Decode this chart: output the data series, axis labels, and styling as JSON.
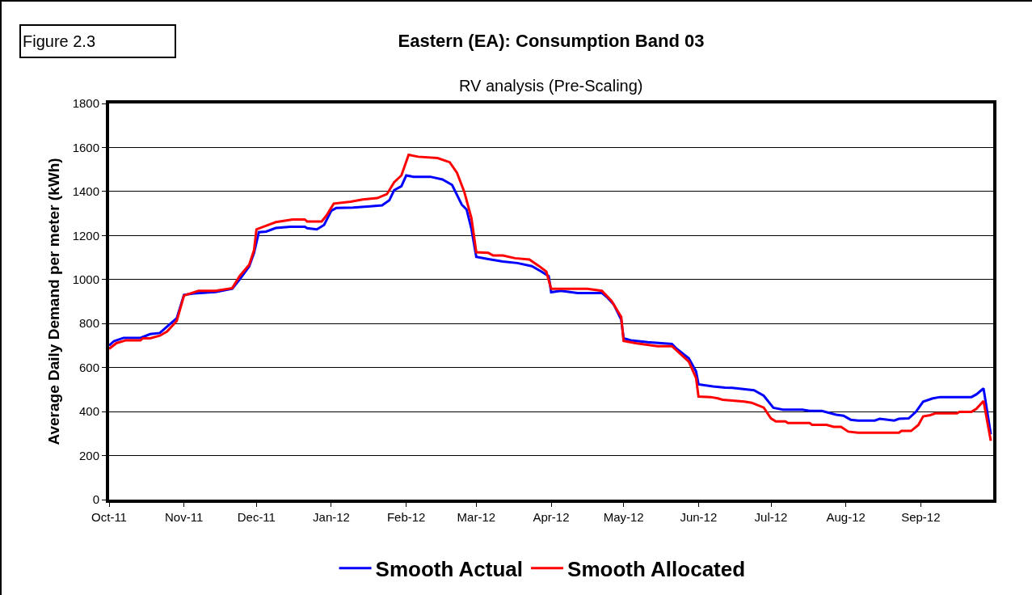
{
  "chart_data": {
    "type": "line",
    "title": "Eastern (EA): Consumption Band 03",
    "subtitle": "RV analysis (Pre-Scaling)",
    "ylabel": "Average Daily Demand per meter (kWh)",
    "annotations": [
      "Figure 2.3"
    ],
    "xlim": [
      "2011-10-01",
      "2012-10-01"
    ],
    "xticks": [
      {
        "value": "2011-10-01",
        "label": "Oct-11"
      },
      {
        "value": "2011-11-01",
        "label": "Nov-11"
      },
      {
        "value": "2011-12-01",
        "label": "Dec-11"
      },
      {
        "value": "2012-01-01",
        "label": "Jan-12"
      },
      {
        "value": "2012-02-01",
        "label": "Feb-12"
      },
      {
        "value": "2012-03-01",
        "label": "Mar-12"
      },
      {
        "value": "2012-04-01",
        "label": "Apr-12"
      },
      {
        "value": "2012-05-01",
        "label": "May-12"
      },
      {
        "value": "2012-06-01",
        "label": "Jun-12"
      },
      {
        "value": "2012-07-01",
        "label": "Jul-12"
      },
      {
        "value": "2012-08-01",
        "label": "Aug-12"
      },
      {
        "value": "2012-09-01",
        "label": "Sep-12"
      }
    ],
    "ylim": [
      0,
      1800
    ],
    "yticks": [
      0,
      200,
      400,
      600,
      800,
      1000,
      1200,
      1400,
      1600,
      1800
    ],
    "grid": "y",
    "legend": "bottom",
    "marker": "none",
    "line_style": "solid",
    "series": [
      {
        "name": "Smooth Actual",
        "color": "#0000ff",
        "x": [
          "2011-10-01",
          "2011-10-03",
          "2011-10-07",
          "2011-10-14",
          "2011-10-18",
          "2011-10-22",
          "2011-10-26",
          "2011-10-29",
          "2011-11-01",
          "2011-11-05",
          "2011-11-14",
          "2011-11-21",
          "2011-11-24",
          "2011-11-28",
          "2011-11-30",
          "2011-12-02",
          "2011-12-05",
          "2011-12-09",
          "2011-12-15",
          "2011-12-21",
          "2011-12-22",
          "2011-12-26",
          "2011-12-29",
          "2012-01-01",
          "2012-01-03",
          "2012-01-10",
          "2012-01-17",
          "2012-01-22",
          "2012-01-25",
          "2012-01-27",
          "2012-01-30",
          "2012-02-01",
          "2012-02-04",
          "2012-02-11",
          "2012-02-16",
          "2012-02-20",
          "2012-02-24",
          "2012-02-26",
          "2012-02-28",
          "2012-03-01",
          "2012-03-06",
          "2012-03-12",
          "2012-03-18",
          "2012-03-24",
          "2012-03-28",
          "2012-03-31",
          "2012-04-01",
          "2012-04-05",
          "2012-04-12",
          "2012-04-22",
          "2012-04-24",
          "2012-04-27",
          "2012-04-30",
          "2012-05-01",
          "2012-05-04",
          "2012-05-11",
          "2012-05-21",
          "2012-05-23",
          "2012-05-28",
          "2012-05-31",
          "2012-06-01",
          "2012-06-07",
          "2012-06-12",
          "2012-06-15",
          "2012-06-24",
          "2012-06-28",
          "2012-07-02",
          "2012-07-06",
          "2012-07-14",
          "2012-07-17",
          "2012-07-22",
          "2012-07-28",
          "2012-07-31",
          "2012-08-03",
          "2012-08-06",
          "2012-08-13",
          "2012-08-15",
          "2012-08-21",
          "2012-08-23",
          "2012-08-27",
          "2012-08-30",
          "2012-09-02",
          "2012-09-06",
          "2012-09-09",
          "2012-09-22",
          "2012-09-24",
          "2012-09-27",
          "2012-09-30"
        ],
        "values": [
          700,
          720,
          735,
          735,
          752,
          757,
          796,
          824,
          930,
          937,
          943,
          958,
          1000,
          1060,
          1121,
          1215,
          1218,
          1234,
          1240,
          1240,
          1233,
          1228,
          1248,
          1313,
          1325,
          1327,
          1333,
          1337,
          1360,
          1406,
          1424,
          1473,
          1467,
          1467,
          1455,
          1430,
          1340,
          1318,
          1230,
          1103,
          1093,
          1082,
          1075,
          1061,
          1036,
          1015,
          942,
          949,
          939,
          939,
          921,
          885,
          818,
          733,
          724,
          715,
          707,
          685,
          642,
          582,
          524,
          514,
          509,
          508,
          497,
          472,
          417,
          409,
          409,
          403,
          403,
          386,
          381,
          363,
          359,
          359,
          367,
          359,
          367,
          369,
          399,
          445,
          460,
          466,
          466,
          478,
          505,
          297
        ]
      },
      {
        "name": "Smooth Allocated",
        "color": "#ff0000",
        "x": [
          "2011-10-01",
          "2011-10-04",
          "2011-10-08",
          "2011-10-14",
          "2011-10-15",
          "2011-10-18",
          "2011-10-22",
          "2011-10-25",
          "2011-10-29",
          "2011-11-01",
          "2011-11-07",
          "2011-11-14",
          "2011-11-21",
          "2011-11-24",
          "2011-11-28",
          "2011-11-30",
          "2011-12-01",
          "2011-12-09",
          "2011-12-16",
          "2011-12-21",
          "2011-12-22",
          "2011-12-28",
          "2011-12-30",
          "2012-01-02",
          "2012-01-09",
          "2012-01-14",
          "2012-01-20",
          "2012-01-24",
          "2012-01-27",
          "2012-01-30",
          "2012-02-02",
          "2012-02-06",
          "2012-02-14",
          "2012-02-19",
          "2012-02-22",
          "2012-02-25",
          "2012-02-28",
          "2012-03-01",
          "2012-03-06",
          "2012-03-08",
          "2012-03-12",
          "2012-03-17",
          "2012-03-23",
          "2012-03-27",
          "2012-03-30",
          "2012-04-01",
          "2012-04-16",
          "2012-04-22",
          "2012-04-26",
          "2012-04-30",
          "2012-05-01",
          "2012-05-06",
          "2012-05-15",
          "2012-05-21",
          "2012-05-24",
          "2012-05-28",
          "2012-05-31",
          "2012-06-01",
          "2012-06-06",
          "2012-06-09",
          "2012-06-11",
          "2012-06-20",
          "2012-06-23",
          "2012-06-28",
          "2012-07-01",
          "2012-07-03",
          "2012-07-07",
          "2012-07-08",
          "2012-07-17",
          "2012-07-18",
          "2012-07-24",
          "2012-07-27",
          "2012-07-30",
          "2012-08-02",
          "2012-08-06",
          "2012-08-23",
          "2012-08-24",
          "2012-08-28",
          "2012-08-31",
          "2012-09-02",
          "2012-09-05",
          "2012-09-07",
          "2012-09-16",
          "2012-09-17",
          "2012-09-22",
          "2012-09-24",
          "2012-09-27",
          "2012-09-30"
        ],
        "values": [
          685,
          711,
          724,
          724,
          733,
          733,
          745,
          764,
          812,
          927,
          949,
          949,
          961,
          1015,
          1067,
          1133,
          1228,
          1261,
          1273,
          1273,
          1264,
          1264,
          1291,
          1345,
          1354,
          1364,
          1370,
          1388,
          1442,
          1473,
          1567,
          1558,
          1552,
          1533,
          1485,
          1400,
          1279,
          1124,
          1121,
          1109,
          1109,
          1097,
          1091,
          1061,
          1036,
          958,
          958,
          949,
          903,
          830,
          721,
          711,
          697,
          697,
          667,
          627,
          552,
          468,
          466,
          460,
          454,
          445,
          440,
          418,
          369,
          355,
          355,
          348,
          348,
          340,
          340,
          331,
          331,
          309,
          304,
          304,
          312,
          312,
          339,
          378,
          384,
          392,
          392,
          399,
          399,
          412,
          448,
          267
        ]
      }
    ]
  }
}
